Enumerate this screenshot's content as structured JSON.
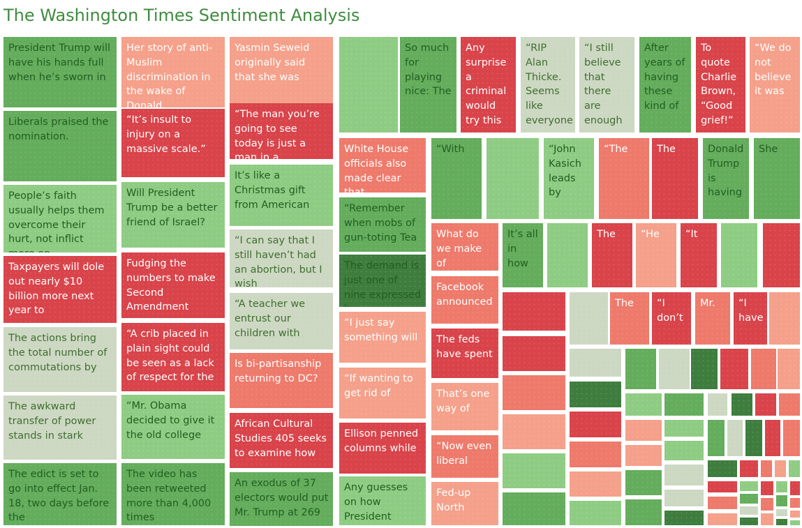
{
  "title": "The Washington Times Sentiment Analysis",
  "colors": {
    "very_positive": "#3e7d3e",
    "positive": "#64ad5c",
    "slightly_positive": "#8fcc83",
    "neutral": "#cdd8c3",
    "slightly_negative": "#f5a08a",
    "negative": "#ee7a6b",
    "very_negative": "#d9434a",
    "text_on_positive": "#215e21",
    "text_on_neutral": "#3f6e2f",
    "text_on_negative": "#ffffff",
    "title": "#3f8c3f"
  },
  "chart_data": {
    "type": "treemap",
    "title": "The Washington Times Sentiment Analysis",
    "sentiment_scale": [
      "very_positive",
      "positive",
      "slightly_positive",
      "neutral",
      "slightly_negative",
      "negative",
      "very_negative"
    ],
    "tiles": [
      {
        "label": "President Trump will have his hands full when he’s sworn in",
        "sentiment": "positive"
      },
      {
        "label": "Liberals praised the nomination.",
        "sentiment": "positive"
      },
      {
        "label": "People’s faith usually helps them overcome their hurt, not inflict more on",
        "sentiment": "slightly_positive"
      },
      {
        "label": "Taxpayers will dole out nearly $10 billion more next year to",
        "sentiment": "very_negative"
      },
      {
        "label": "The actions bring the total number of commutations by",
        "sentiment": "neutral"
      },
      {
        "label": "The awkward transfer of power stands in stark",
        "sentiment": "neutral"
      },
      {
        "label": "The edict is set to go into effect Jan. 18, two days before the",
        "sentiment": "positive"
      },
      {
        "label": "Her story of anti-Muslim discrimination in the wake of Donald",
        "sentiment": "slightly_negative"
      },
      {
        "label": "“It’s insult to injury on a massive scale.”",
        "sentiment": "very_negative"
      },
      {
        "label": "Will President Trump be a better friend of Israel?",
        "sentiment": "slightly_positive"
      },
      {
        "label": "Fudging the numbers to make Second Amendment",
        "sentiment": "very_negative"
      },
      {
        "label": "“A crib placed in plain sight could be seen as a lack of respect for the",
        "sentiment": "very_negative"
      },
      {
        "label": "“Mr. Obama decided to give it the old college",
        "sentiment": "slightly_positive"
      },
      {
        "label": "The video has been retweeted more than 4,000 times",
        "sentiment": "positive"
      },
      {
        "label": "Yasmin Seweid originally said that she was",
        "sentiment": "slightly_negative"
      },
      {
        "label": "“The man you’re going to see today is just a man in a",
        "sentiment": "very_negative"
      },
      {
        "label": "It’s like a Christmas gift from American",
        "sentiment": "slightly_positive"
      },
      {
        "label": "“I can say that I still haven’t had an abortion, but I wish",
        "sentiment": "neutral"
      },
      {
        "label": "“A teacher we entrust our children with",
        "sentiment": "neutral"
      },
      {
        "label": "Is bi-partisanship returning to DC?",
        "sentiment": "negative"
      },
      {
        "label": "African Cultural Studies 405 seeks to examine how",
        "sentiment": "very_negative"
      },
      {
        "label": "An exodus of 37 electors would put Mr. Trump at 269",
        "sentiment": "positive"
      },
      {
        "label": "",
        "sentiment": "slightly_positive"
      },
      {
        "label": "So much for playing nice: The",
        "sentiment": "positive"
      },
      {
        "label": "Any surprise a criminal would try this",
        "sentiment": "very_negative"
      },
      {
        "label": "“RIP Alan Thicke. Seems like everyone",
        "sentiment": "neutral"
      },
      {
        "label": "“I still believe that there are enough",
        "sentiment": "neutral"
      },
      {
        "label": "After years of having these kind of",
        "sentiment": "positive"
      },
      {
        "label": "To quote Charlie Brown, “Good grief!”",
        "sentiment": "very_negative"
      },
      {
        "label": "“We do not believe it was",
        "sentiment": "slightly_negative"
      },
      {
        "label": "White House officials also made clear that",
        "sentiment": "negative"
      },
      {
        "label": "“Remember when mobs of gun-toting Tea",
        "sentiment": "positive"
      },
      {
        "label": "The demand is just one of nine expressed by",
        "sentiment": "very_positive"
      },
      {
        "label": "“I just say something will",
        "sentiment": "slightly_negative"
      },
      {
        "label": "“If wanting to get rid of",
        "sentiment": "slightly_negative"
      },
      {
        "label": "Ellison penned columns while",
        "sentiment": "very_negative"
      },
      {
        "label": "Any guesses on how President",
        "sentiment": "slightly_positive"
      },
      {
        "label": "“With",
        "sentiment": "positive"
      },
      {
        "label": "",
        "sentiment": "slightly_positive"
      },
      {
        "label": "“John Kasich leads by",
        "sentiment": "slightly_positive"
      },
      {
        "label": "“The",
        "sentiment": "negative"
      },
      {
        "label": "The",
        "sentiment": "very_negative"
      },
      {
        "label": "Donald Trump is having",
        "sentiment": "positive"
      },
      {
        "label": "She",
        "sentiment": "positive"
      },
      {
        "label": "What do we make of",
        "sentiment": "negative"
      },
      {
        "label": "It’s all in how",
        "sentiment": "positive"
      },
      {
        "label": "",
        "sentiment": "slightly_positive"
      },
      {
        "label": "The",
        "sentiment": "very_negative"
      },
      {
        "label": "“He",
        "sentiment": "slightly_negative"
      },
      {
        "label": "“It",
        "sentiment": "very_negative"
      },
      {
        "label": "",
        "sentiment": "slightly_positive"
      },
      {
        "label": "",
        "sentiment": "very_negative"
      },
      {
        "label": "Facebook announced",
        "sentiment": "negative"
      },
      {
        "label": "The feds have spent",
        "sentiment": "very_negative"
      },
      {
        "label": "That’s one way of",
        "sentiment": "slightly_negative"
      },
      {
        "label": "“Now even liberal",
        "sentiment": "negative"
      },
      {
        "label": "Fed-up North",
        "sentiment": "slightly_negative"
      },
      {
        "label": "",
        "sentiment": "very_negative"
      },
      {
        "label": "",
        "sentiment": "neutral"
      },
      {
        "label": "The",
        "sentiment": "negative"
      },
      {
        "label": "“I don’t",
        "sentiment": "very_negative"
      },
      {
        "label": "Mr.",
        "sentiment": "negative"
      },
      {
        "label": "“I have",
        "sentiment": "very_negative"
      },
      {
        "label": "",
        "sentiment": "slightly_negative"
      }
    ]
  }
}
